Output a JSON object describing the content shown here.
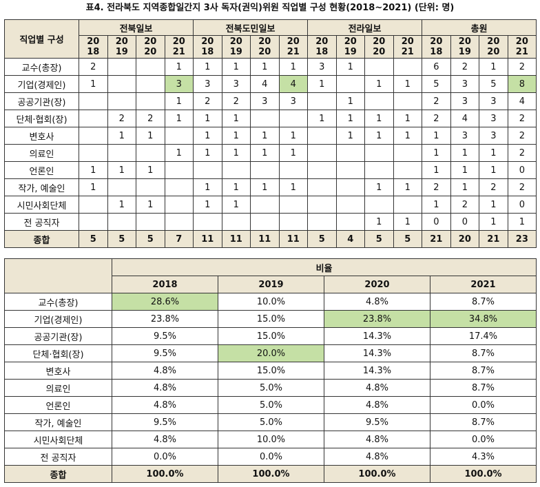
{
  "title": "표4. 전라북도 지역종합일간지 3사 독자(권익)위원 직업별 구성 현황(2018~2021) (단위: 명)",
  "table1": {
    "corner": "직업별 구성",
    "groups": [
      "전북일보",
      "전북도민일보",
      "전라일보",
      "총원"
    ],
    "years": [
      [
        "20",
        "18"
      ],
      [
        "20",
        "19"
      ],
      [
        "20",
        "20"
      ],
      [
        "20",
        "21"
      ]
    ],
    "rows": [
      {
        "label": "교수(총장)",
        "cells": [
          "2",
          "",
          "",
          "1",
          "1",
          "1",
          "1",
          "1",
          "3",
          "1",
          "",
          "",
          "6",
          "2",
          "1",
          "2"
        ]
      },
      {
        "label": "기업(경제인)",
        "cells": [
          "1",
          "",
          "",
          "3",
          "3",
          "3",
          "4",
          "4",
          "1",
          "",
          "1",
          "1",
          "5",
          "3",
          "5",
          "8"
        ]
      },
      {
        "label": "공공기관(장)",
        "cells": [
          "",
          "",
          "",
          "1",
          "2",
          "2",
          "3",
          "3",
          "",
          "1",
          "",
          "",
          "2",
          "3",
          "3",
          "4"
        ]
      },
      {
        "label": "단체·협회(장)",
        "cells": [
          "",
          "2",
          "2",
          "1",
          "1",
          "1",
          "",
          "",
          "1",
          "1",
          "1",
          "1",
          "2",
          "4",
          "3",
          "2"
        ]
      },
      {
        "label": "변호사",
        "cells": [
          "",
          "1",
          "1",
          "",
          "1",
          "1",
          "1",
          "1",
          "",
          "1",
          "1",
          "1",
          "1",
          "3",
          "3",
          "2"
        ]
      },
      {
        "label": "의료인",
        "cells": [
          "",
          "",
          "",
          "1",
          "1",
          "1",
          "1",
          "1",
          "",
          "",
          "",
          "",
          "1",
          "1",
          "1",
          "2"
        ]
      },
      {
        "label": "언론인",
        "cells": [
          "1",
          "1",
          "1",
          "",
          "",
          "",
          "",
          "",
          "",
          "",
          "",
          "",
          "1",
          "1",
          "1",
          "0"
        ]
      },
      {
        "label": "작가, 예술인",
        "cells": [
          "1",
          "",
          "",
          "",
          "1",
          "1",
          "1",
          "1",
          "",
          "",
          "1",
          "1",
          "2",
          "1",
          "2",
          "2"
        ]
      },
      {
        "label": "시민사회단체",
        "cells": [
          "",
          "1",
          "1",
          "",
          "1",
          "1",
          "",
          "",
          "",
          "",
          "",
          "",
          "1",
          "2",
          "1",
          "0"
        ]
      },
      {
        "label": "전 공직자",
        "cells": [
          "",
          "",
          "",
          "",
          "",
          "",
          "",
          "",
          "",
          "",
          "1",
          "1",
          "0",
          "0",
          "1",
          "1"
        ]
      }
    ],
    "total": {
      "label": "종합",
      "cells": [
        "5",
        "5",
        "5",
        "7",
        "11",
        "11",
        "11",
        "11",
        "5",
        "4",
        "5",
        "5",
        "21",
        "20",
        "21",
        "23"
      ]
    }
  },
  "table2": {
    "group": "비율",
    "years": [
      "2018",
      "2019",
      "2020",
      "2021"
    ],
    "rows": [
      {
        "label": "교수(총장)",
        "cells": [
          "28.6%",
          "10.0%",
          "4.8%",
          "8.7%"
        ]
      },
      {
        "label": "기업(경제인)",
        "cells": [
          "23.8%",
          "15.0%",
          "23.8%",
          "34.8%"
        ]
      },
      {
        "label": "공공기관(장)",
        "cells": [
          "9.5%",
          "15.0%",
          "14.3%",
          "17.4%"
        ]
      },
      {
        "label": "단체·협회(장)",
        "cells": [
          "9.5%",
          "20.0%",
          "14.3%",
          "8.7%"
        ]
      },
      {
        "label": "변호사",
        "cells": [
          "4.8%",
          "15.0%",
          "14.3%",
          "8.7%"
        ]
      },
      {
        "label": "의료인",
        "cells": [
          "4.8%",
          "5.0%",
          "4.8%",
          "8.7%"
        ]
      },
      {
        "label": "언론인",
        "cells": [
          "4.8%",
          "5.0%",
          "4.8%",
          "0.0%"
        ]
      },
      {
        "label": "작가, 예술인",
        "cells": [
          "9.5%",
          "5.0%",
          "9.5%",
          "8.7%"
        ]
      },
      {
        "label": "시민사회단체",
        "cells": [
          "4.8%",
          "10.0%",
          "4.8%",
          "0.0%"
        ]
      },
      {
        "label": "전 공직자",
        "cells": [
          "0.0%",
          "0.0%",
          "4.8%",
          "4.3%"
        ]
      }
    ],
    "total": {
      "label": "종합",
      "cells": [
        "100.0%",
        "100.0%",
        "100.0%",
        "100.0%"
      ]
    }
  }
}
